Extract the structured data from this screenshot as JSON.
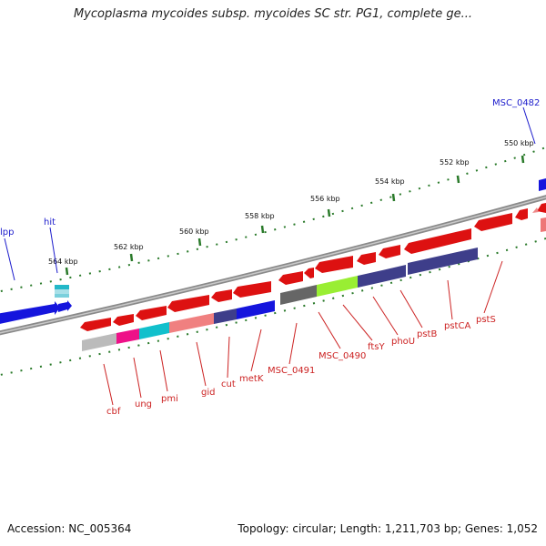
{
  "title": "Mycoplasma mycoides subsp. mycoides SC str. PG1, complete ge...",
  "accession": "Accession: NC_005364",
  "summary": "Topology: circular; Length: 1,211,703 bp; Genes: 1,052",
  "colors": {
    "backbone": "#888888",
    "tick": "#2a7a2a",
    "kbp_text": "#111111",
    "blue_label": "#1c1ccc",
    "red_label": "#cc2222"
  },
  "kbp_ticks": [
    "550 kbp",
    "552 kbp",
    "554 kbp",
    "556 kbp",
    "558 kbp",
    "560 kbp",
    "562 kbp",
    "564 kbp"
  ],
  "gene_labels": [
    "MSC_0482",
    "lpp",
    "hit",
    "cbf",
    "ung",
    "pmi",
    "gid",
    "cut",
    "metK",
    "MSC_0491",
    "MSC_0490",
    "ftsY",
    "phoU",
    "pstB",
    "pstCA",
    "pstS"
  ]
}
